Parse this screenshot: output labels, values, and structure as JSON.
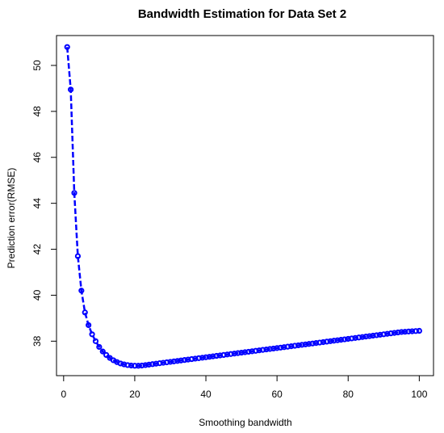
{
  "chart_data": {
    "type": "line",
    "title": "Bandwidth Estimation for Data Set 2",
    "xlabel": "Smoothing bandwidth",
    "ylabel": "Prediction error(RMSE)",
    "xlim": [
      -2,
      104
    ],
    "ylim": [
      36.5,
      51.3
    ],
    "x_ticks": [
      0,
      20,
      40,
      60,
      80,
      100
    ],
    "y_ticks": [
      38,
      40,
      42,
      44,
      46,
      48,
      50
    ],
    "grid": false,
    "legend": "none",
    "marker": "open-circle",
    "line_style": "dashed",
    "color": "#0000ff",
    "series": [
      {
        "x": [
          1,
          2,
          3,
          4,
          5,
          6,
          7,
          8,
          9,
          10,
          11,
          12,
          13,
          14,
          15,
          16,
          17,
          18,
          19,
          20,
          21,
          22,
          23,
          24,
          25,
          26,
          27,
          28,
          29,
          30,
          31,
          32,
          33,
          34,
          35,
          36,
          37,
          38,
          39,
          40,
          41,
          42,
          43,
          44,
          45,
          46,
          47,
          48,
          49,
          50,
          51,
          52,
          53,
          54,
          55,
          56,
          57,
          58,
          59,
          60,
          61,
          62,
          63,
          64,
          65,
          66,
          67,
          68,
          69,
          70,
          71,
          72,
          73,
          74,
          75,
          76,
          77,
          78,
          79,
          80,
          81,
          82,
          83,
          84,
          85,
          86,
          87,
          88,
          89,
          90,
          91,
          92,
          93,
          94,
          95,
          96,
          97,
          98,
          99,
          100
        ],
        "values": [
          50.8,
          48.95,
          44.45,
          41.7,
          40.2,
          39.25,
          38.7,
          38.3,
          38.0,
          37.75,
          37.55,
          37.4,
          37.27,
          37.17,
          37.09,
          37.03,
          36.99,
          36.96,
          36.94,
          36.93,
          36.93,
          36.94,
          36.96,
          36.98,
          37.0,
          37.02,
          37.04,
          37.06,
          37.08,
          37.1,
          37.12,
          37.14,
          37.16,
          37.18,
          37.2,
          37.22,
          37.24,
          37.26,
          37.28,
          37.3,
          37.32,
          37.34,
          37.36,
          37.38,
          37.4,
          37.42,
          37.44,
          37.46,
          37.48,
          37.5,
          37.52,
          37.54,
          37.56,
          37.58,
          37.6,
          37.62,
          37.64,
          37.66,
          37.68,
          37.7,
          37.72,
          37.74,
          37.76,
          37.78,
          37.8,
          37.82,
          37.84,
          37.86,
          37.88,
          37.9,
          37.92,
          37.94,
          37.96,
          37.98,
          38.0,
          38.02,
          38.04,
          38.06,
          38.08,
          38.1,
          38.12,
          38.14,
          38.16,
          38.18,
          38.2,
          38.22,
          38.24,
          38.26,
          38.28,
          38.3,
          38.32,
          38.34,
          38.36,
          38.38,
          38.4,
          38.41,
          38.42,
          38.43,
          38.44,
          38.45
        ]
      }
    ]
  }
}
